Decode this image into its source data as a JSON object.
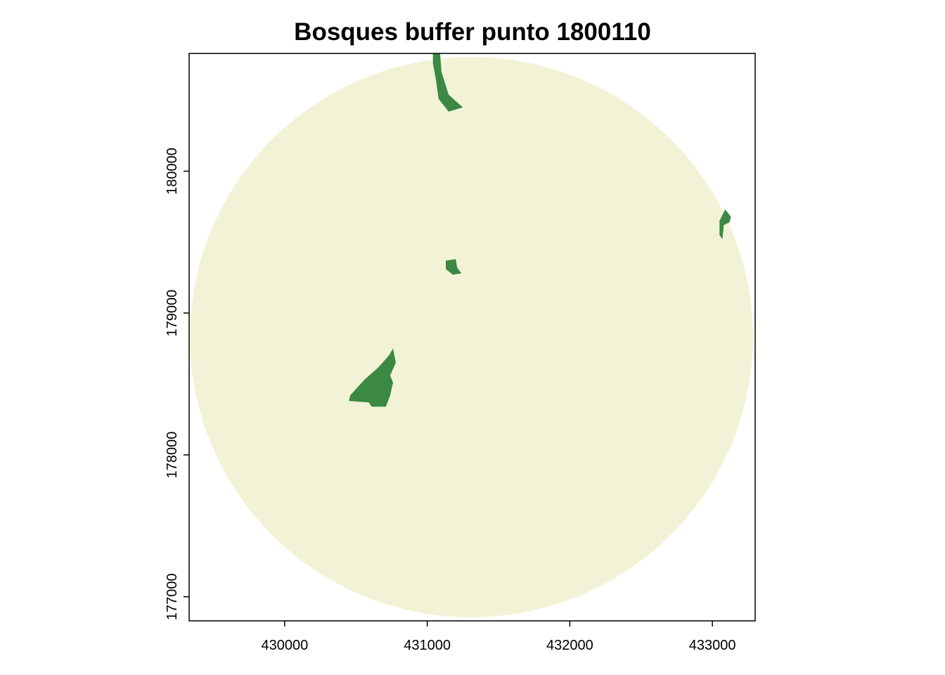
{
  "chart_data": {
    "type": "heatmap",
    "title": "Bosques buffer punto 1800110",
    "xlabel": "",
    "ylabel": "",
    "xlim": [
      429330,
      433300
    ],
    "ylim": [
      176830,
      180830
    ],
    "x_ticks": [
      {
        "value": 430000,
        "label": "430000"
      },
      {
        "value": 431000,
        "label": "431000"
      },
      {
        "value": 432000,
        "label": "432000"
      },
      {
        "value": 433000,
        "label": "433000"
      }
    ],
    "y_ticks": [
      {
        "value": 177000,
        "label": "177000"
      },
      {
        "value": 178000,
        "label": "178000"
      },
      {
        "value": 179000,
        "label": "179000"
      },
      {
        "value": 180000,
        "label": "180000"
      }
    ],
    "buffer": {
      "center_x": 431310,
      "center_y": 178830,
      "radius": 1975,
      "color": "#f2f3d6"
    },
    "forest_color": "#3b8942",
    "forest_patches": [
      {
        "name": "north",
        "polygon": [
          [
            431040,
            180830
          ],
          [
            431090,
            180830
          ],
          [
            431100,
            180700
          ],
          [
            431150,
            180540
          ],
          [
            431250,
            180450
          ],
          [
            431150,
            180420
          ],
          [
            431080,
            180510
          ],
          [
            431060,
            180650
          ],
          [
            431040,
            180760
          ]
        ]
      },
      {
        "name": "east",
        "polygon": [
          [
            433090,
            179730
          ],
          [
            433130,
            179680
          ],
          [
            433120,
            179640
          ],
          [
            433080,
            179620
          ],
          [
            433070,
            179520
          ],
          [
            433050,
            179550
          ],
          [
            433050,
            179650
          ]
        ]
      },
      {
        "name": "center",
        "polygon": [
          [
            431130,
            179370
          ],
          [
            431200,
            179380
          ],
          [
            431210,
            179320
          ],
          [
            431240,
            179280
          ],
          [
            431180,
            179270
          ],
          [
            431130,
            179310
          ]
        ]
      },
      {
        "name": "southwest",
        "polygon": [
          [
            430760,
            178750
          ],
          [
            430780,
            178650
          ],
          [
            430740,
            178560
          ],
          [
            430760,
            178510
          ],
          [
            430740,
            178420
          ],
          [
            430710,
            178340
          ],
          [
            430610,
            178340
          ],
          [
            430590,
            178370
          ],
          [
            430450,
            178380
          ],
          [
            430460,
            178420
          ],
          [
            430560,
            178530
          ],
          [
            430660,
            178620
          ],
          [
            430730,
            178700
          ]
        ]
      }
    ]
  }
}
